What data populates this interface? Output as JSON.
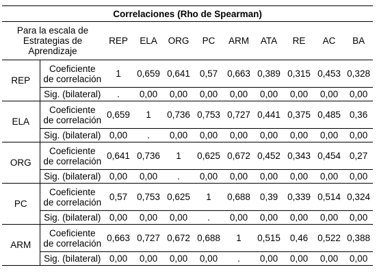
{
  "table": {
    "title": "Correlaciones (Rho de Spearman)",
    "scale_label_lines": [
      "Para la escala de",
      "Estrategias de",
      "Aprendizaje"
    ],
    "columns": [
      "REP",
      "ELA",
      "ORG",
      "PC",
      "ARM",
      "ATA",
      "RE",
      "AC",
      "BA"
    ],
    "coef_label_lines": [
      "Coeficiente",
      "de correlación"
    ],
    "sig_label": "Sig. (bilateral)",
    "rows": [
      {
        "name": "REP",
        "coef": [
          "1",
          "0,659",
          "0,641",
          "0,57",
          "0,663",
          "0,389",
          "0,315",
          "0,453",
          "0,328"
        ],
        "sig": [
          ".",
          "0,00",
          "0,00",
          "0,00",
          "0,00",
          "0,00",
          "0,00",
          "0,00",
          "0,00"
        ]
      },
      {
        "name": "ELA",
        "coef": [
          "0,659",
          "1",
          "0,736",
          "0,753",
          "0,727",
          "0,441",
          "0,375",
          "0,485",
          "0,36"
        ],
        "sig": [
          "0,00",
          ".",
          "0,00",
          "0,00",
          "0,00",
          "0,00",
          "0,00",
          "0,00",
          "0,00"
        ]
      },
      {
        "name": "ORG",
        "coef": [
          "0,641",
          "0,736",
          "1",
          "0,625",
          "0,672",
          "0,452",
          "0,343",
          "0,454",
          "0,27"
        ],
        "sig": [
          "0,00",
          "0,00",
          ".",
          "0,00",
          "0,00",
          "0,00",
          "0,00",
          "0,00",
          "0,00"
        ]
      },
      {
        "name": "PC",
        "coef": [
          "0,57",
          "0,753",
          "0,625",
          "1",
          "0,688",
          "0,39",
          "0,339",
          "0,514",
          "0,324"
        ],
        "sig": [
          "0,00",
          "0,00",
          "0,00",
          ".",
          "0,00",
          "0,00",
          "0,00",
          "0,00",
          "0,00"
        ]
      },
      {
        "name": "ARM",
        "coef": [
          "0,663",
          "0,727",
          "0,672",
          "0,688",
          "1",
          "0,515",
          "0,46",
          "0,522",
          "0,388"
        ],
        "sig": [
          "0,00",
          "0,00",
          "0,00",
          "0,00",
          ".",
          "0,00",
          "0,00",
          "0,00",
          "0,00"
        ]
      }
    ]
  }
}
